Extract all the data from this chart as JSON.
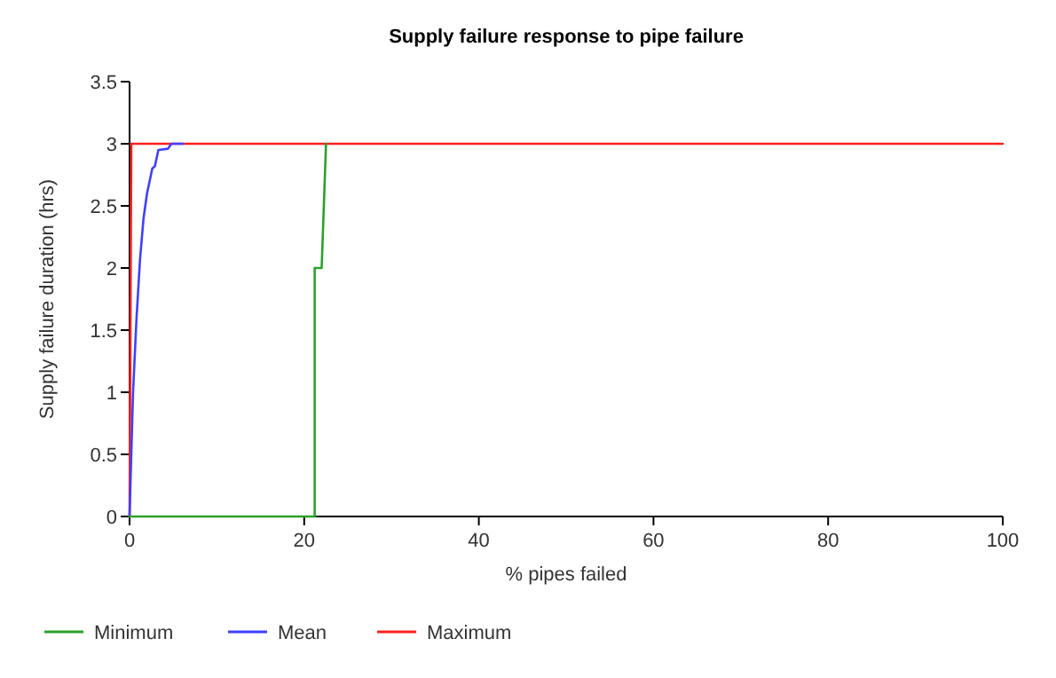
{
  "chart_data": {
    "type": "line",
    "title": "Supply failure response to pipe failure",
    "xlabel": "% pipes failed",
    "ylabel": "Supply failure duration (hrs)",
    "xlim": [
      0,
      100
    ],
    "xticks": [
      0,
      20,
      40,
      60,
      80,
      100
    ],
    "ylim": [
      0,
      3.5
    ],
    "yticks": [
      0,
      0.5,
      1,
      1.5,
      2,
      2.5,
      3,
      3.5
    ],
    "grid": false,
    "legend": "bottom left",
    "marker": "none",
    "line_style": "solid",
    "series": [
      {
        "name": "Minimum",
        "color": "#2ca02c",
        "x": [
          0,
          21.2,
          21.2,
          22.0,
          22.5
        ],
        "values": [
          0,
          0,
          2,
          2,
          3
        ]
      },
      {
        "name": "Mean",
        "color": "#4040ff",
        "x": [
          0,
          0.4,
          0.8,
          1.2,
          1.6,
          2.0,
          2.6,
          2.9,
          3.3,
          4.4,
          4.8,
          6.1
        ],
        "values": [
          0,
          1,
          1.6,
          2.07,
          2.4,
          2.6,
          2.8,
          2.82,
          2.95,
          2.96,
          3,
          3
        ]
      },
      {
        "name": "Maximum",
        "color": "#ff2020",
        "x": [
          0,
          0.2,
          100
        ],
        "values": [
          0,
          3,
          3
        ]
      }
    ]
  }
}
